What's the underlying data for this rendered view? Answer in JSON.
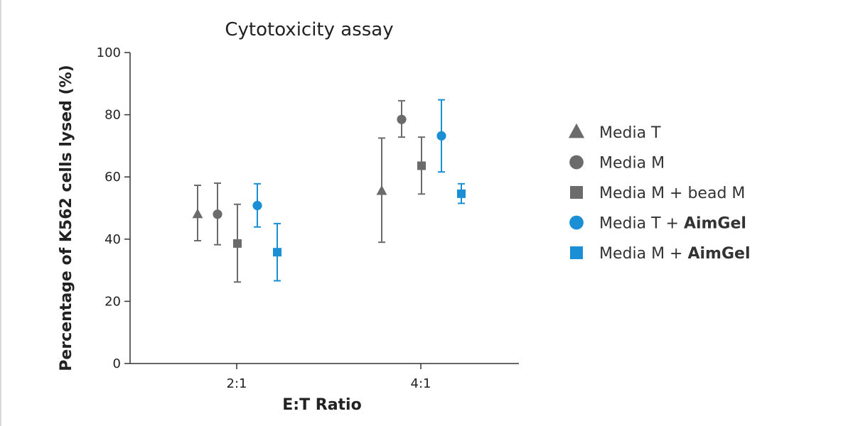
{
  "chart_data": {
    "type": "scatter",
    "title": "Cytotoxicity assay",
    "xlabel": "E:T Ratio",
    "ylabel": "Percentage of K562 cells lysed (%)",
    "categories": [
      "2:1",
      "4:1"
    ],
    "ylim": [
      0,
      100
    ],
    "yticks": [
      0,
      20,
      40,
      60,
      80,
      100
    ],
    "grid": false,
    "legend_position": "right",
    "series": [
      {
        "name": "Media T",
        "name_suffix": "",
        "marker": "triangle",
        "color": "#6b6b6b",
        "values": [
          48,
          55.5
        ],
        "err_low": [
          39.5,
          39
        ],
        "err_high": [
          57.3,
          72.5
        ]
      },
      {
        "name": "Media M",
        "name_suffix": "",
        "marker": "circle",
        "color": "#6b6b6b",
        "values": [
          48,
          78.5
        ],
        "err_low": [
          38.2,
          72.8
        ],
        "err_high": [
          58,
          84.5
        ]
      },
      {
        "name": "Media M + bead M",
        "name_suffix": "",
        "marker": "square",
        "color": "#6b6b6b",
        "values": [
          38.6,
          63.6
        ],
        "err_low": [
          26.2,
          54.5
        ],
        "err_high": [
          51.2,
          72.8
        ]
      },
      {
        "name": "Media T + ",
        "name_suffix": "AimGel",
        "marker": "circle",
        "color": "#1a8fd6",
        "values": [
          50.8,
          73.2
        ],
        "err_low": [
          43.9,
          61.6
        ],
        "err_high": [
          57.8,
          84.8
        ]
      },
      {
        "name": "Media M + ",
        "name_suffix": "AimGel",
        "marker": "square",
        "color": "#1a8fd6",
        "values": [
          35.8,
          54.6
        ],
        "err_low": [
          26.6,
          51.5
        ],
        "err_high": [
          45,
          57.8
        ]
      }
    ]
  }
}
